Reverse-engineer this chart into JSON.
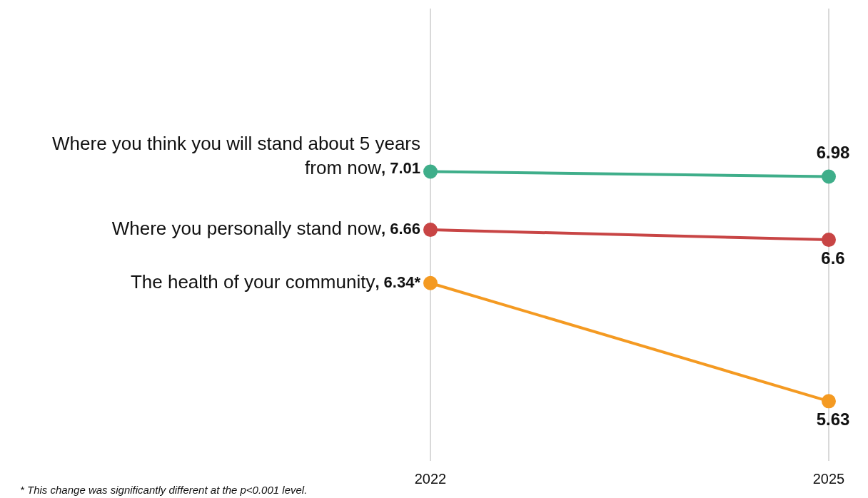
{
  "chart_data": {
    "type": "line",
    "categories": [
      "2022",
      "2025"
    ],
    "series": [
      {
        "name": "Where you think you will stand about 5 years from now",
        "color": "#3fae8a",
        "values": [
          7.01,
          6.98
        ],
        "value_labels": [
          ", 7.01",
          "6.98"
        ]
      },
      {
        "name": "Where you personally stand now",
        "color": "#c84545",
        "values": [
          6.66,
          6.6
        ],
        "value_labels": [
          ", 6.66",
          "6.6"
        ]
      },
      {
        "name": "The health of your community",
        "color": "#f49a22",
        "values": [
          6.34,
          5.63
        ],
        "value_labels": [
          ", 6.34*",
          "5.63"
        ]
      }
    ],
    "annotations": [
      "* This change was significantly different at the p<0.001 level."
    ],
    "grid": "x",
    "legend": false,
    "marker": "circle",
    "line_style": "solid"
  }
}
